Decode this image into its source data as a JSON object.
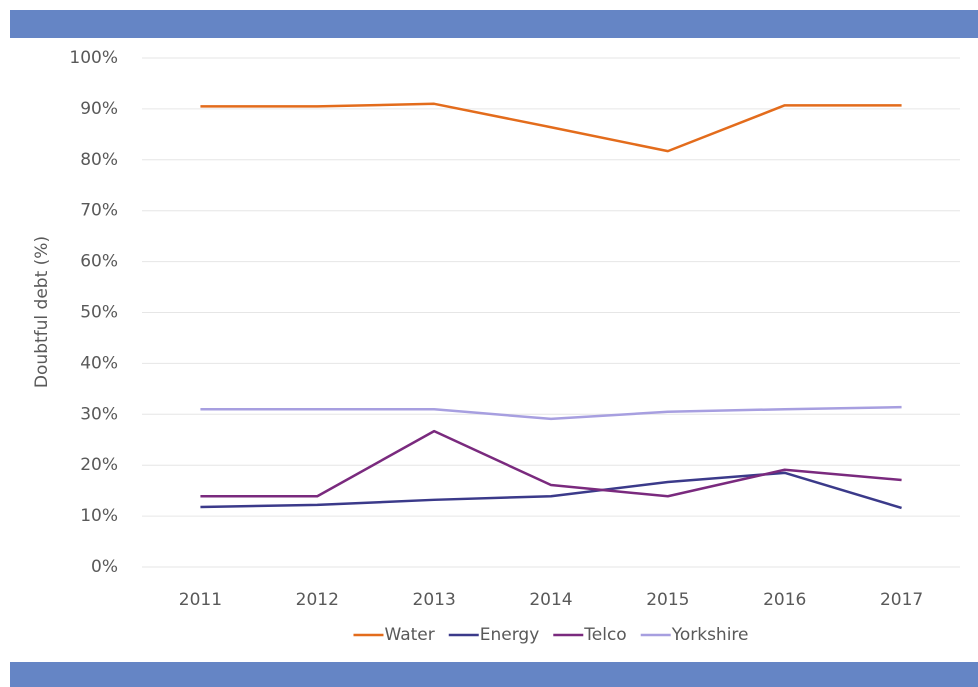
{
  "chart_data": {
    "type": "line",
    "y_label": "Doubtful debt (%)",
    "categories": [
      "2011",
      "2012",
      "2013",
      "2014",
      "2015",
      "2016",
      "2017"
    ],
    "series": [
      {
        "name": "Water",
        "color": "#e36c1c",
        "values": [
          90.5,
          90.5,
          91,
          86.4,
          81.7,
          90.7,
          90.7
        ]
      },
      {
        "name": "Energy",
        "color": "#3b3a8a",
        "values": [
          11.8,
          12.2,
          13.2,
          13.9,
          16.7,
          18.5,
          11.6
        ]
      },
      {
        "name": "Telco",
        "color": "#7a2a7e",
        "values": [
          13.9,
          13.9,
          26.7,
          16.1,
          13.9,
          19.1,
          17.1
        ]
      },
      {
        "name": "Yorkshire",
        "color": "#a79fe0",
        "values": [
          31,
          31,
          31,
          29.1,
          30.5,
          31,
          31.4
        ]
      }
    ],
    "ylim": [
      0,
      100
    ],
    "yticks": [
      {
        "value": 0,
        "label": "0%"
      },
      {
        "value": 10,
        "label": "10%"
      },
      {
        "value": 20,
        "label": "20%"
      },
      {
        "value": 30,
        "label": "30%"
      },
      {
        "value": 40,
        "label": "40%"
      },
      {
        "value": 50,
        "label": "50%"
      },
      {
        "value": 60,
        "label": "60%"
      },
      {
        "value": 70,
        "label": "70%"
      },
      {
        "value": 80,
        "label": "80%"
      },
      {
        "value": 90,
        "label": "90%"
      },
      {
        "value": 100,
        "label": "100%"
      }
    ],
    "grid": true,
    "legend": "bottom"
  }
}
